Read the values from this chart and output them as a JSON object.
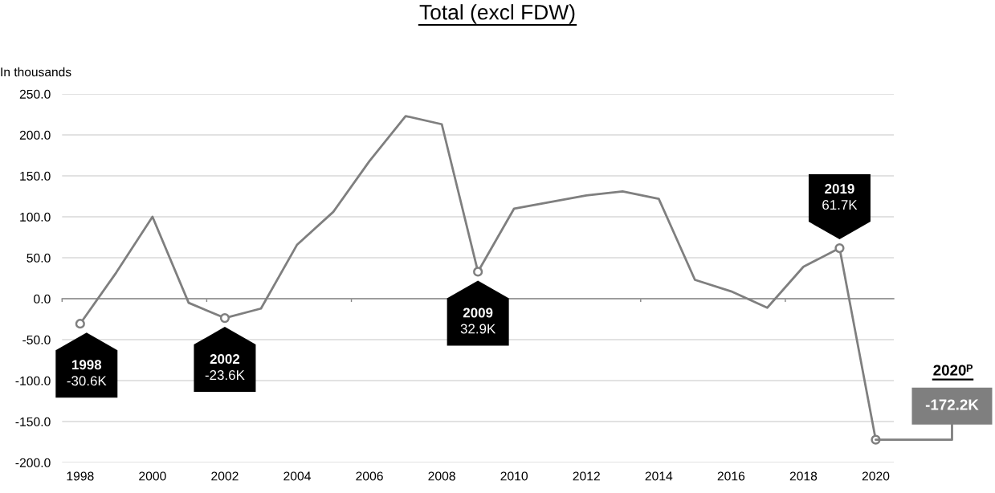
{
  "chart_data": {
    "type": "line",
    "title": "Total (excl FDW)",
    "ylabel": "In thousands",
    "x": [
      1998,
      1999,
      2000,
      2001,
      2002,
      2003,
      2004,
      2005,
      2006,
      2007,
      2008,
      2009,
      2010,
      2011,
      2012,
      2013,
      2014,
      2015,
      2016,
      2017,
      2018,
      2019,
      2020
    ],
    "series": [
      {
        "color": "#7f7f7f",
        "values": [
          -30.6,
          32,
          100,
          -5,
          -23.6,
          -12,
          66,
          106,
          168,
          223,
          213,
          32.9,
          110,
          118,
          126,
          131,
          122,
          23,
          9,
          -11,
          39,
          61.7,
          -172.2
        ]
      }
    ],
    "xlim": [
      1997.5,
      2020.5
    ],
    "xticks": [
      1998,
      2000,
      2002,
      2004,
      2006,
      2008,
      2010,
      2012,
      2014,
      2016,
      2018,
      2020,
      {
        "value": 1997.5,
        "label": null
      },
      {
        "value": 2001.5,
        "label": null
      },
      {
        "value": 2005.5,
        "label": null
      },
      {
        "value": 2013.5,
        "label": null
      },
      {
        "value": 2017.5,
        "label": null
      }
    ],
    "ylim": [
      -200,
      250
    ],
    "yticks": [
      {
        "value": -200,
        "label": "-200.0"
      },
      {
        "value": -150,
        "label": "-150.0"
      },
      {
        "value": -100,
        "label": "-100.0"
      },
      {
        "value": -50,
        "label": "-50.0"
      },
      {
        "value": 0,
        "label": "0.0"
      },
      {
        "value": 50,
        "label": "50.0"
      },
      {
        "value": 100,
        "label": "100.0"
      },
      {
        "value": 150,
        "label": "150.0"
      },
      {
        "value": 200,
        "label": "200.0"
      },
      {
        "value": 250,
        "label": "250.0"
      }
    ],
    "grid": "y",
    "annotations": [
      {
        "text": "1998\n-30.6K",
        "x": 1998,
        "y": -30.6
      },
      {
        "text": "2002\n-23.6K",
        "x": 2002,
        "y": -23.6
      },
      {
        "text": "2009\n32.9K",
        "x": 2009,
        "y": 32.9
      },
      {
        "text": "2019\n61.7K",
        "x": 2019,
        "y": 61.7
      },
      "2020ᴾ",
      {
        "text": "-172.2K",
        "x": 2020,
        "y": -172.2
      }
    ]
  }
}
